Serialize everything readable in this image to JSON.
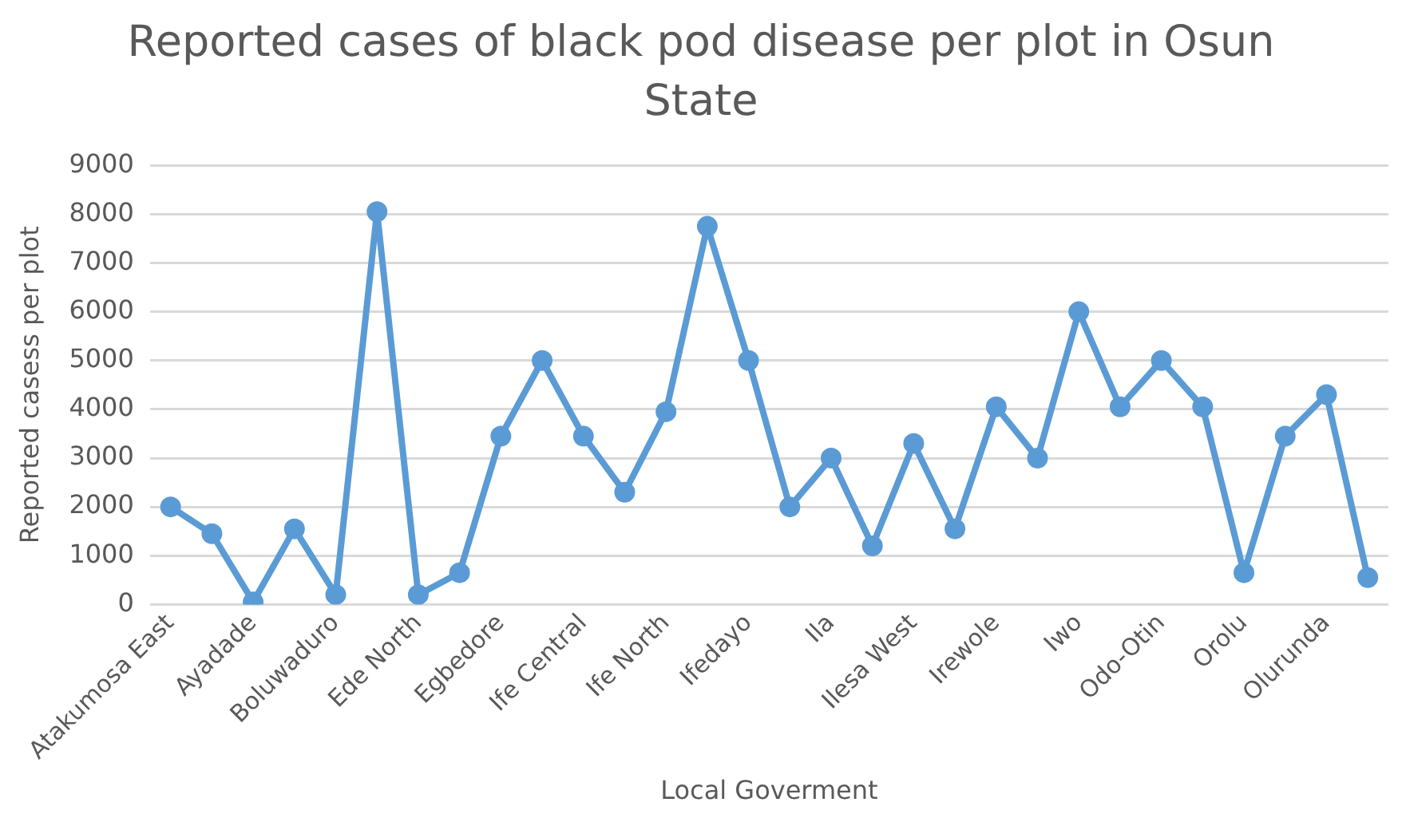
{
  "chart_data": {
    "type": "line",
    "title": "Reported cases of black pod disease per plot in Osun State",
    "xlabel": "Local Goverment",
    "ylabel": "Reported casess per plot",
    "categories": [
      "Atakumosa East",
      null,
      "Ayadade",
      null,
      "Boluwaduro",
      null,
      "Ede North",
      null,
      "Egbedore",
      null,
      "Ife Central",
      null,
      "Ife North",
      null,
      "Ifedayo",
      null,
      "Ila",
      null,
      "Ilesa West",
      null,
      "Irewole",
      null,
      "Iwo",
      null,
      "Odo-Otin",
      null,
      "Orolu",
      null,
      "Olurunda",
      null
    ],
    "series": [
      {
        "color": "#5b9bd5",
        "values": [
          2000,
          1450,
          50,
          1550,
          200,
          8050,
          200,
          650,
          3450,
          5000,
          3450,
          2300,
          3950,
          7750,
          5000,
          2000,
          3000,
          1200,
          3300,
          1550,
          4050,
          3000,
          6000,
          4050,
          5000,
          4050,
          650,
          3450,
          4300,
          550
        ]
      }
    ],
    "ylim": [
      0,
      9000
    ],
    "yticks": [
      0,
      1000,
      2000,
      3000,
      4000,
      5000,
      6000,
      7000,
      8000,
      9000
    ],
    "grid": "y",
    "marker": "circle",
    "line_style": "solid"
  }
}
